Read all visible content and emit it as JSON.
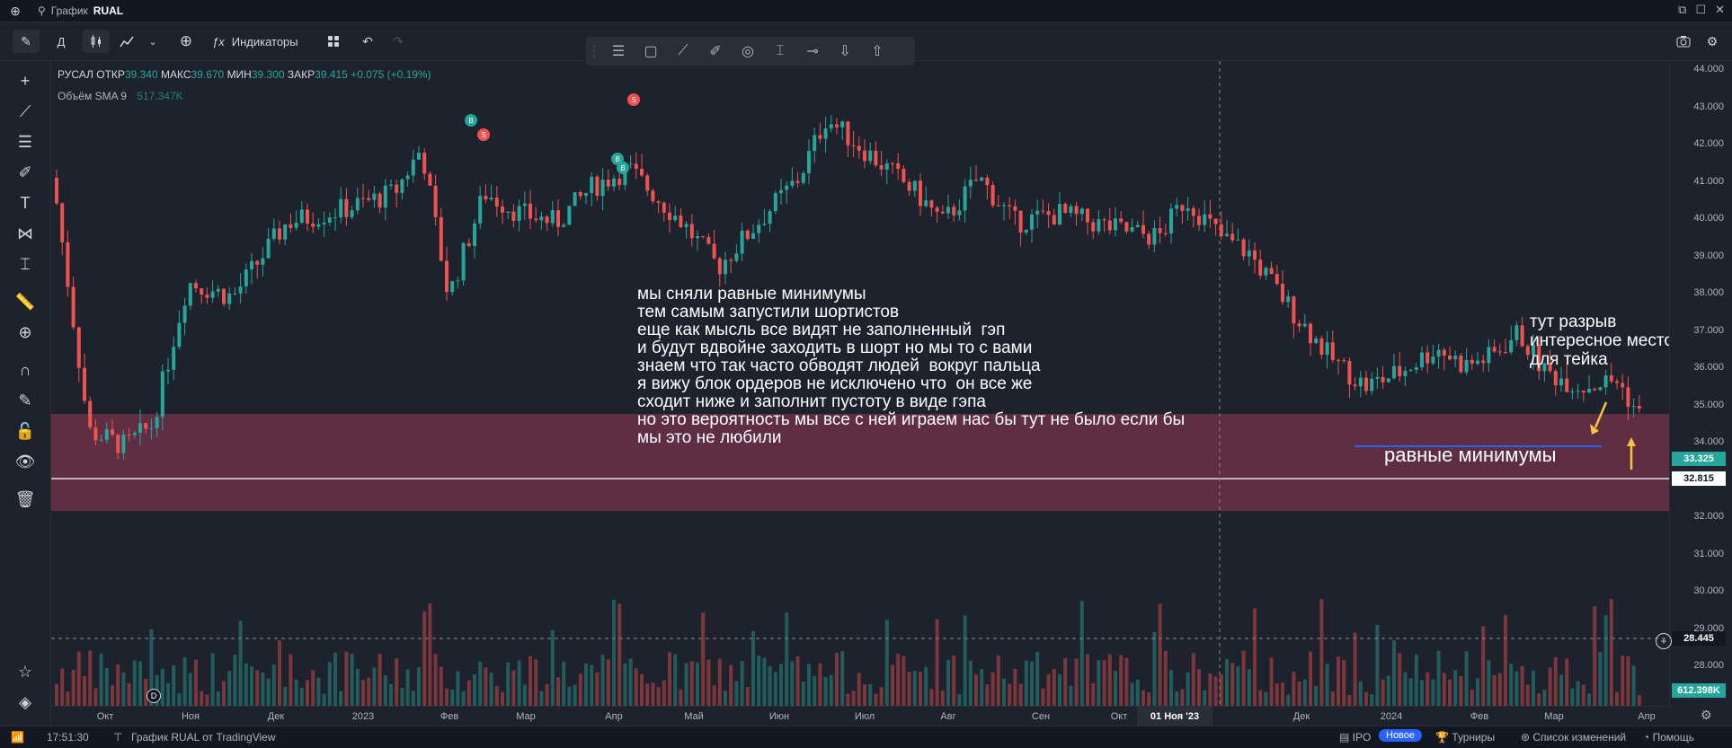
{
  "titlebar": {
    "search_prefix": "График",
    "symbol": "RUAL"
  },
  "toolbar": {
    "interval": "Д",
    "indicators_label": "Индикаторы"
  },
  "legend": {
    "name": "РУСАЛ",
    "open_label": "ОТКР",
    "open": "39.340",
    "high_label": "МАКС",
    "high": "39.670",
    "low_label": "МИН",
    "low": "39.300",
    "close_label": "ЗАКР",
    "close": "39.415",
    "change": "+0.075 (+0.19%)",
    "volume_label": "Объём SMA 9",
    "volume_value": "517.347K"
  },
  "annotations": {
    "main_text": "мы сняли равные минимумы\nтем самым запустили шортистов\nеще как мысль все видят не заполненный  гэп\nи будут вдвойне заходить в шорт но мы то с вами\nзнаем что так часто обводят людей  вокруг пальца\nя вижу блок ордеров не исключено что  он все же\nсходит ниже и заполнит пустоту в виде гэпа\nно это вероятность мы все с ней играем нас бы тут не было если бы\nмы это не любили",
    "gap_text": "тут разрыв\nинтересное место\nдля тейка",
    "equal_lows_text": "равные минимумы"
  },
  "price_scale": {
    "labels": [
      "44.000",
      "43.000",
      "42.000",
      "41.000",
      "40.000",
      "39.000",
      "38.000",
      "37.000",
      "36.000",
      "35.000",
      "34.000",
      "33.000",
      "32.000",
      "31.000",
      "30.000",
      "29.000",
      "28.000"
    ],
    "last_price": "33.325",
    "level_price": "32.815",
    "crosshair_price": "28.445",
    "volume_tag": "612.398K"
  },
  "time_scale": {
    "labels": [
      "Окт",
      "Ноя",
      "Дек",
      "2023",
      "Фев",
      "Мар",
      "Апр",
      "Май",
      "Июн",
      "Июл",
      "Авг",
      "Сен",
      "Окт",
      "Дек",
      "2024",
      "Фев",
      "Мар",
      "Апр"
    ],
    "crosshair_date": "01 Ноя '23"
  },
  "statusbar": {
    "time": "17:51:30",
    "source": "График RUAL от TradingView",
    "ipo": "IPO",
    "new_badge": "Новое",
    "tournaments": "Турниры",
    "changelog": "Список изменений",
    "help": "Помощь"
  },
  "markers": {
    "buy": "B",
    "sell": "S",
    "dividend": "D"
  },
  "colors": {
    "up": "#26a69a",
    "down": "#ef5350",
    "zone": "#6b3046",
    "accent_line": "#2962ff",
    "arrow": "#f5c542"
  }
}
